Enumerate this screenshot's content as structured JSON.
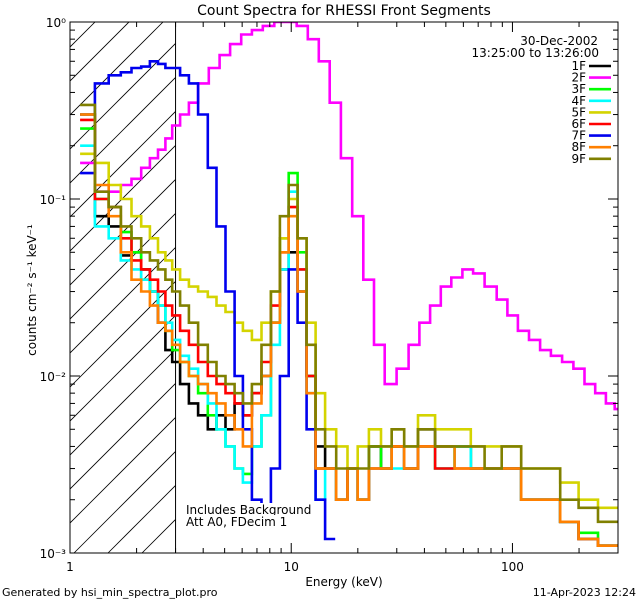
{
  "chart_data": {
    "type": "line",
    "title": "Count Spectra for RHESSI Front Segments",
    "xlabel": "Energy (keV)",
    "ylabel": "counts cm⁻² s⁻¹ keV⁻¹",
    "xscale": "log",
    "yscale": "log",
    "xlim": [
      1,
      300
    ],
    "ylim": [
      0.001,
      1
    ],
    "x_ticks": [
      {
        "v": 1,
        "label": "1"
      },
      {
        "v": 10,
        "label": "10"
      },
      {
        "v": 100,
        "label": "100"
      }
    ],
    "y_ticks": [
      {
        "v": 1,
        "label": "10⁰"
      },
      {
        "v": 0.1,
        "label": "10⁻¹"
      },
      {
        "v": 0.01,
        "label": "10⁻²"
      },
      {
        "v": 0.001,
        "label": "10⁻³"
      }
    ],
    "shaded_region": {
      "x": [
        1,
        3
      ],
      "style": "diagonal hatch"
    },
    "legend_placement": "top-right",
    "date": "30-Dec-2002",
    "time_range": "13:25:00 to 13:26:00",
    "annotations": [
      "Includes Background",
      "Att A0, FDecim 1"
    ],
    "series": [
      {
        "name": "1F",
        "color": "#000000",
        "x": [
          1.2,
          1.4,
          1.6,
          1.8,
          2.0,
          2.2,
          2.4,
          2.6,
          2.8,
          3.0,
          3.3,
          3.6,
          4.0,
          4.4,
          4.8,
          5.3,
          5.8,
          6.3,
          7.0,
          7.7,
          8.5,
          9.3,
          10.2,
          11.2,
          12.3,
          13.5,
          15,
          17,
          19,
          21,
          24,
          27,
          30,
          35,
          40,
          50,
          60,
          70,
          80,
          100,
          120,
          150,
          180,
          220,
          270
        ],
        "y": [
          0.3,
          0.08,
          0.07,
          0.048,
          0.05,
          0.04,
          0.03,
          0.02,
          0.014,
          0.012,
          0.009,
          0.007,
          0.006,
          0.005,
          0.006,
          0.005,
          0.007,
          0.006,
          0.008,
          0.01,
          0.02,
          0.04,
          0.05,
          0.03,
          0.01,
          0.004,
          0.003,
          0.002,
          0.003,
          0.002,
          0.004,
          0.003,
          0.004,
          0.003,
          0.005,
          0.004,
          0.004,
          0.003,
          0.003,
          0.003,
          0.002,
          0.002,
          0.0015,
          0.0012,
          0.0011
        ]
      },
      {
        "name": "2F",
        "color": "#ff00ff",
        "x": [
          1.2,
          1.4,
          1.6,
          1.8,
          2.0,
          2.2,
          2.4,
          2.6,
          2.8,
          3.0,
          3.3,
          3.6,
          4.0,
          4.5,
          5.0,
          5.6,
          6.3,
          7.0,
          7.9,
          8.9,
          10,
          11.2,
          12.6,
          14.1,
          15.8,
          17.8,
          20,
          22.4,
          25,
          28,
          32,
          36,
          40,
          45,
          50,
          56,
          63,
          70,
          80,
          90,
          100,
          112,
          126,
          141,
          158,
          178,
          200,
          224,
          250,
          280,
          300
        ],
        "y": [
          0.16,
          0.11,
          0.11,
          0.12,
          0.13,
          0.15,
          0.17,
          0.19,
          0.22,
          0.26,
          0.3,
          0.35,
          0.45,
          0.55,
          0.65,
          0.75,
          0.85,
          0.9,
          0.95,
          1.0,
          1.0,
          0.95,
          0.8,
          0.6,
          0.35,
          0.17,
          0.08,
          0.035,
          0.015,
          0.009,
          0.011,
          0.015,
          0.02,
          0.025,
          0.032,
          0.036,
          0.04,
          0.038,
          0.032,
          0.027,
          0.022,
          0.018,
          0.016,
          0.014,
          0.013,
          0.012,
          0.011,
          0.009,
          0.008,
          0.007,
          0.0065
        ]
      },
      {
        "name": "3F",
        "color": "#00ff00",
        "x": [
          1.2,
          1.4,
          1.6,
          1.8,
          2.0,
          2.2,
          2.4,
          2.6,
          2.8,
          3.0,
          3.3,
          3.6,
          4.0,
          4.4,
          4.8,
          5.3,
          5.8,
          6.3,
          7.0,
          7.7,
          8.5,
          9.3,
          10.2,
          11.2,
          12.3,
          13.5,
          15,
          17,
          19,
          21,
          24,
          27,
          30,
          35,
          40,
          50,
          60,
          70,
          80,
          100,
          120,
          150,
          180,
          220,
          270
        ],
        "y": [
          0.25,
          0.1,
          0.09,
          0.065,
          0.05,
          0.035,
          0.03,
          0.025,
          0.018,
          0.014,
          0.012,
          0.01,
          0.008,
          0.006,
          0.005,
          0.004,
          0.003,
          0.0028,
          0.004,
          0.006,
          0.02,
          0.06,
          0.14,
          0.05,
          0.01,
          0.003,
          0.003,
          0.002,
          0.003,
          0.002,
          0.004,
          0.003,
          0.004,
          0.003,
          0.004,
          0.003,
          0.004,
          0.003,
          0.003,
          0.003,
          0.002,
          0.002,
          0.0015,
          0.0013,
          0.0011
        ]
      },
      {
        "name": "4F",
        "color": "#00ffff",
        "x": [
          1.2,
          1.4,
          1.6,
          1.8,
          2.0,
          2.2,
          2.4,
          2.6,
          2.8,
          3.0,
          3.3,
          3.6,
          4.0,
          4.4,
          4.8,
          5.3,
          5.8,
          6.3,
          7.0,
          7.7,
          8.5,
          9.3,
          10.2,
          11.2,
          12.3,
          13.5,
          15,
          17,
          19,
          21,
          24,
          27,
          30,
          35,
          40,
          50,
          60,
          70,
          80,
          100,
          120,
          150,
          180,
          220,
          270
        ],
        "y": [
          0.2,
          0.07,
          0.06,
          0.045,
          0.04,
          0.035,
          0.03,
          0.025,
          0.02,
          0.016,
          0.013,
          0.011,
          0.009,
          0.007,
          0.005,
          0.004,
          0.003,
          0.0025,
          0.004,
          0.006,
          0.015,
          0.04,
          0.11,
          0.04,
          0.008,
          0.002,
          0.003,
          0.002,
          0.003,
          0.002,
          0.003,
          0.003,
          0.003,
          0.003,
          0.004,
          0.003,
          0.004,
          0.003,
          0.003,
          0.003,
          0.002,
          0.002,
          0.0015,
          0.0012,
          0.0011
        ]
      },
      {
        "name": "5F",
        "color": "#d4d400",
        "x": [
          1.2,
          1.4,
          1.6,
          1.8,
          2.0,
          2.2,
          2.4,
          2.6,
          2.8,
          3.0,
          3.3,
          3.6,
          4.0,
          4.4,
          4.8,
          5.3,
          5.8,
          6.3,
          7.0,
          7.7,
          8.5,
          9.3,
          10.2,
          11.2,
          12.3,
          13.5,
          15,
          17,
          19,
          21,
          24,
          27,
          30,
          35,
          40,
          50,
          60,
          70,
          80,
          100,
          120,
          150,
          180,
          220,
          270
        ],
        "y": [
          0.18,
          0.16,
          0.12,
          0.1,
          0.08,
          0.07,
          0.06,
          0.05,
          0.045,
          0.04,
          0.035,
          0.032,
          0.03,
          0.028,
          0.025,
          0.023,
          0.02,
          0.018,
          0.016,
          0.02,
          0.03,
          0.06,
          0.1,
          0.06,
          0.02,
          0.008,
          0.005,
          0.004,
          0.003,
          0.004,
          0.005,
          0.004,
          0.005,
          0.004,
          0.006,
          0.005,
          0.005,
          0.004,
          0.004,
          0.004,
          0.003,
          0.003,
          0.0025,
          0.002,
          0.0018
        ]
      },
      {
        "name": "6F",
        "color": "#ff0000",
        "x": [
          1.2,
          1.4,
          1.6,
          1.8,
          2.0,
          2.2,
          2.4,
          2.6,
          2.8,
          3.0,
          3.3,
          3.6,
          4.0,
          4.4,
          4.8,
          5.3,
          5.8,
          6.3,
          7.0,
          7.7,
          8.5,
          9.3,
          10.2,
          11.2,
          12.3,
          13.5,
          15,
          17,
          19,
          21,
          24,
          27,
          30,
          35,
          40,
          50,
          60,
          70,
          80,
          100,
          120,
          150,
          180,
          220,
          270
        ],
        "y": [
          0.28,
          0.1,
          0.09,
          0.06,
          0.045,
          0.04,
          0.035,
          0.03,
          0.025,
          0.022,
          0.018,
          0.015,
          0.012,
          0.01,
          0.009,
          0.008,
          0.007,
          0.006,
          0.008,
          0.012,
          0.025,
          0.05,
          0.09,
          0.04,
          0.01,
          0.003,
          0.003,
          0.002,
          0.003,
          0.002,
          0.003,
          0.003,
          0.004,
          0.003,
          0.004,
          0.003,
          0.003,
          0.003,
          0.003,
          0.003,
          0.002,
          0.002,
          0.0015,
          0.0012,
          0.0011
        ]
      },
      {
        "name": "7F",
        "color": "#0000ee",
        "x": [
          1.2,
          1.4,
          1.6,
          1.8,
          2.0,
          2.2,
          2.4,
          2.6,
          2.8,
          3.0,
          3.3,
          3.6,
          4.0,
          4.4,
          4.8,
          5.3,
          5.8,
          6.3,
          7.0,
          7.7,
          8.5,
          9.3,
          10.2,
          11.2,
          12.3,
          13.5,
          15
        ],
        "y": [
          0.14,
          0.45,
          0.5,
          0.52,
          0.55,
          0.56,
          0.6,
          0.58,
          0.55,
          0.55,
          0.5,
          0.45,
          0.3,
          0.15,
          0.07,
          0.03,
          0.01,
          0.005,
          0.002,
          0.0018,
          0.003,
          0.01,
          0.04,
          0.02,
          0.005,
          0.002,
          0.0012
        ]
      },
      {
        "name": "8F",
        "color": "#ff8000",
        "x": [
          1.2,
          1.4,
          1.6,
          1.8,
          2.0,
          2.2,
          2.4,
          2.6,
          2.8,
          3.0,
          3.3,
          3.6,
          4.0,
          4.4,
          4.8,
          5.3,
          5.8,
          6.3,
          7.0,
          7.7,
          8.5,
          9.3,
          10.2,
          11.2,
          12.3,
          13.5,
          15,
          17,
          19,
          21,
          24,
          27,
          30,
          35,
          40,
          50,
          60,
          70,
          80,
          100,
          120,
          150,
          180,
          220,
          270
        ],
        "y": [
          0.3,
          0.12,
          0.08,
          0.05,
          0.035,
          0.03,
          0.025,
          0.02,
          0.018,
          0.015,
          0.012,
          0.01,
          0.009,
          0.008,
          0.007,
          0.006,
          0.005,
          0.004,
          0.007,
          0.01,
          0.02,
          0.05,
          0.08,
          0.03,
          0.008,
          0.003,
          0.003,
          0.002,
          0.003,
          0.002,
          0.003,
          0.003,
          0.004,
          0.003,
          0.004,
          0.004,
          0.003,
          0.003,
          0.003,
          0.003,
          0.002,
          0.002,
          0.0015,
          0.0012,
          0.0011
        ]
      },
      {
        "name": "9F",
        "color": "#808000",
        "x": [
          1.2,
          1.4,
          1.6,
          1.8,
          2.0,
          2.2,
          2.4,
          2.6,
          2.8,
          3.0,
          3.3,
          3.6,
          4.0,
          4.4,
          4.8,
          5.3,
          5.8,
          6.3,
          7.0,
          7.7,
          8.5,
          9.3,
          10.2,
          11.2,
          12.3,
          13.5,
          15,
          17,
          19,
          21,
          24,
          27,
          30,
          35,
          40,
          50,
          60,
          70,
          80,
          100,
          120,
          150,
          180,
          220,
          270
        ],
        "y": [
          0.34,
          0.11,
          0.09,
          0.07,
          0.06,
          0.05,
          0.045,
          0.04,
          0.035,
          0.03,
          0.025,
          0.02,
          0.015,
          0.012,
          0.01,
          0.009,
          0.008,
          0.007,
          0.009,
          0.015,
          0.03,
          0.08,
          0.12,
          0.06,
          0.015,
          0.005,
          0.004,
          0.003,
          0.003,
          0.003,
          0.004,
          0.004,
          0.005,
          0.004,
          0.005,
          0.004,
          0.004,
          0.004,
          0.003,
          0.004,
          0.003,
          0.003,
          0.002,
          0.0018,
          0.0015
        ]
      }
    ]
  },
  "footer": {
    "generated_by": "Generated by hsi_min_spectra_plot.pro",
    "plot_date": "11-Apr-2023 12:24"
  }
}
